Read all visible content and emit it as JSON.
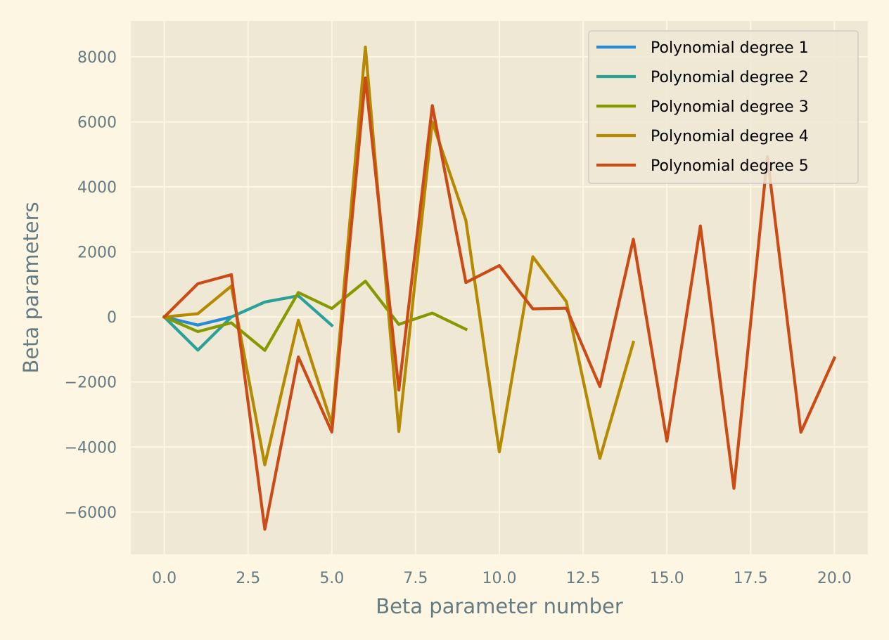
{
  "chart_data": {
    "type": "line",
    "title": "",
    "xlabel": "Beta parameter number",
    "ylabel": "Beta parameters",
    "xlim": [
      -1,
      21
    ],
    "ylim": [
      -7300,
      9100
    ],
    "xticks": [
      0,
      2.5,
      5,
      7.5,
      10,
      12.5,
      15,
      17.5,
      20
    ],
    "xtick_labels": [
      "0.0",
      "2.5",
      "5.0",
      "7.5",
      "10.0",
      "12.5",
      "15.0",
      "17.5",
      "20.0"
    ],
    "yticks": [
      -6000,
      -4000,
      -2000,
      0,
      2000,
      4000,
      6000,
      8000
    ],
    "ytick_labels": [
      "−6000",
      "−4000",
      "−2000",
      "0",
      "2000",
      "4000",
      "6000",
      "8000"
    ],
    "grid": true,
    "legend_position": "top-right",
    "series": [
      {
        "name": "Polynomial degree 1",
        "color": "#268bd2",
        "x": [
          0,
          1,
          2
        ],
        "y": [
          0,
          -250,
          0
        ]
      },
      {
        "name": "Polynomial degree 2",
        "color": "#2aa198",
        "x": [
          0,
          1,
          2,
          3,
          4,
          5
        ],
        "y": [
          0,
          -1020,
          0,
          460,
          650,
          -260
        ]
      },
      {
        "name": "Polynomial degree 3",
        "color": "#859900",
        "x": [
          0,
          1,
          2,
          3,
          4,
          5,
          6,
          7,
          8,
          9
        ],
        "y": [
          0,
          -450,
          -180,
          -1030,
          750,
          260,
          1100,
          -230,
          120,
          -380
        ]
      },
      {
        "name": "Polynomial degree 4",
        "color": "#b58900",
        "x": [
          0,
          1,
          2,
          3,
          4,
          5,
          6,
          7,
          8,
          9,
          10,
          11,
          12,
          13,
          14
        ],
        "y": [
          0,
          100,
          950,
          -4550,
          -100,
          -3300,
          8300,
          -3520,
          6000,
          2970,
          -4150,
          1850,
          470,
          -4350,
          -780
        ]
      },
      {
        "name": "Polynomial degree 5",
        "color": "#cb4b16",
        "x": [
          0,
          1,
          2,
          3,
          4,
          5,
          6,
          7,
          8,
          9,
          10,
          11,
          12,
          13,
          14,
          15,
          16,
          17,
          18,
          19,
          20
        ],
        "y": [
          0,
          1020,
          1300,
          -6530,
          -1230,
          -3540,
          7350,
          -2250,
          6500,
          1060,
          1580,
          250,
          270,
          -2140,
          2390,
          -3820,
          2800,
          -5270,
          4930,
          -3550,
          -1260
        ]
      }
    ]
  }
}
